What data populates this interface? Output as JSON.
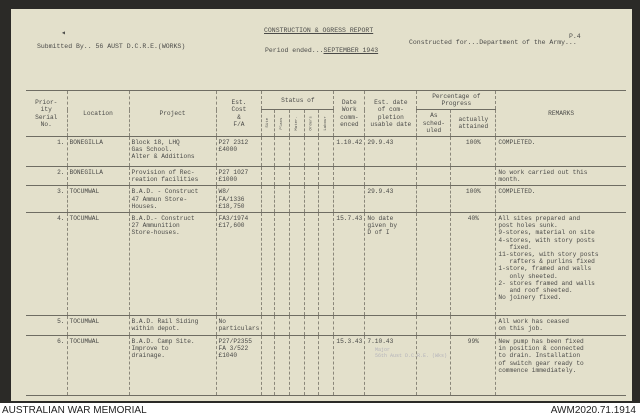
{
  "page_number": "P.4",
  "header": {
    "title": "CONSTRUCTION & OGRESS REPORT",
    "submitted_by_label": "Submitted By..",
    "submitted_by": "56 AUST D.C.R.E.(WORKS)",
    "period_label": "Period ended...",
    "period": "SEPTEMBER 1943",
    "constructed_for_label": "Constructed for...",
    "constructed_for": "Department of the Army..."
  },
  "columns": {
    "priority": "Prior-\nity\nSerial\nNo.",
    "location": "Location",
    "project": "Project",
    "cost": "Est.\nCost\n&\nF/A",
    "status": "Status of",
    "status_sub": [
      "Site",
      "Plans",
      "Mater.",
      "Orders",
      "Labour"
    ],
    "date_commenced": "Date\nWork\ncomm-\nenced",
    "est_completion": "Est. date\nof com-\npletion\nusable date",
    "progress": "Percentage of\nProgress",
    "scheduled": "As\nsched-\nuled",
    "attained": "actually\nattained",
    "remarks": "REMARKS"
  },
  "rows": [
    {
      "no": "1.",
      "location": "BONEGILLA",
      "project": "Block 18, LHQ\nGas School.\nAlter & Additions",
      "cost": "P27 2312\n£4000",
      "commenced": "1.10.42",
      "completion": "29.9.43",
      "scheduled": "",
      "attained": "100%",
      "remarks": "COMPLETED."
    },
    {
      "no": "2.",
      "location": "BONEGILLA",
      "project": "Provision of Rec-\nreation facilities",
      "cost": "P27 1027\n£1000",
      "commenced": "",
      "completion": "",
      "scheduled": "",
      "attained": "",
      "remarks": "No work carried out this\nmonth."
    },
    {
      "no": "3.",
      "location": "TOCUMWAL",
      "project": "B.A.D. - Construct\n47 Ammun Store-\nHouses.",
      "cost": "W8/\nFA/1336\n£18,750",
      "commenced": "",
      "completion": "29.9.43",
      "scheduled": "",
      "attained": "100%",
      "remarks": "COMPLETED."
    },
    {
      "no": "4.",
      "location": "TOCUMWAL",
      "project": "B.A.D.- Construct\n27 Ammunition\nStore-houses.",
      "cost": "FA3/1974\n£17,600",
      "commenced": "15.7.43",
      "completion": "No date\ngiven by\nD of I",
      "scheduled": "",
      "attained": "40%",
      "remarks": "All sites prepared and\npost holes sunk.\n9-stores, material on site\n4-stores, with story posts\n   fixed.\n11-stores, with story posts\n   rafters & purlins fixed\n1-store, framed and walls\n   only sheeted.\n2- stores framed and walls\n   and roof sheeted.\nNo joinery fixed."
    },
    {
      "no": "5.",
      "location": "TOCUMWAL",
      "project": "B.A.D. Rail Siding\nwithin depot.",
      "cost": "No\nparticulars",
      "commenced": "",
      "completion": "",
      "scheduled": "",
      "attained": "",
      "remarks": "All work has ceased\non this job."
    },
    {
      "no": "6.",
      "location": "TOCUMWAL",
      "project": "B.A.D. Camp Site.\nImprove to\ndrainage.",
      "cost": "P27/P2355\nFA 3/522\n£1040",
      "commenced": "15.3.43",
      "completion": "7.10.43",
      "scheduled": "",
      "attained": "99%",
      "remarks": "New pump has been fixed\nin position & connected\nto drain. Installation\nof switch gear ready to\ncommence immediately."
    }
  ],
  "stamp": "Major\n56th Aust D.C.R.E. (Wks)",
  "footer": {
    "left": "AUSTRALIAN WAR MEMORIAL",
    "right": "AWM2020.71.1914"
  }
}
